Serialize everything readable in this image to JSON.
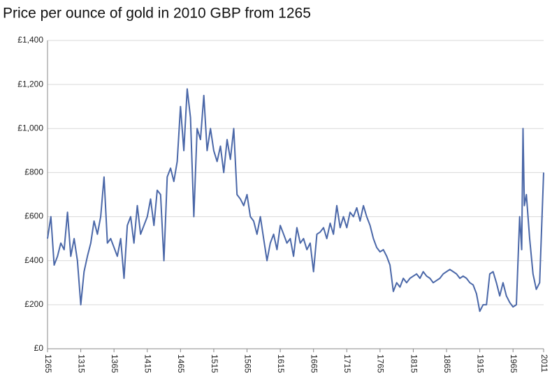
{
  "chart_data": {
    "type": "line",
    "title": "Price per ounce of gold in 2010 GBP from 1265",
    "x": [
      1265,
      1270,
      1275,
      1280,
      1285,
      1290,
      1295,
      1300,
      1305,
      1310,
      1315,
      1320,
      1325,
      1330,
      1335,
      1340,
      1345,
      1350,
      1355,
      1360,
      1365,
      1370,
      1375,
      1380,
      1385,
      1390,
      1395,
      1400,
      1405,
      1410,
      1415,
      1420,
      1425,
      1430,
      1435,
      1440,
      1445,
      1450,
      1455,
      1460,
      1465,
      1470,
      1475,
      1480,
      1485,
      1490,
      1495,
      1500,
      1505,
      1510,
      1515,
      1520,
      1525,
      1530,
      1535,
      1540,
      1545,
      1550,
      1555,
      1560,
      1565,
      1570,
      1575,
      1580,
      1585,
      1590,
      1595,
      1600,
      1605,
      1610,
      1615,
      1620,
      1625,
      1630,
      1635,
      1640,
      1645,
      1650,
      1655,
      1660,
      1665,
      1670,
      1675,
      1680,
      1685,
      1690,
      1695,
      1700,
      1705,
      1710,
      1715,
      1720,
      1725,
      1730,
      1735,
      1740,
      1745,
      1750,
      1755,
      1760,
      1765,
      1770,
      1775,
      1780,
      1785,
      1790,
      1795,
      1800,
      1805,
      1810,
      1815,
      1820,
      1825,
      1830,
      1835,
      1840,
      1845,
      1850,
      1855,
      1860,
      1865,
      1870,
      1875,
      1880,
      1885,
      1890,
      1895,
      1900,
      1905,
      1910,
      1915,
      1920,
      1925,
      1930,
      1935,
      1940,
      1945,
      1950,
      1955,
      1960,
      1965,
      1970,
      1975,
      1978,
      1980,
      1982,
      1985,
      1990,
      1995,
      2000,
      2005,
      2011
    ],
    "series": [
      {
        "name": "Price",
        "color": "#4a67a8",
        "values": [
          500,
          600,
          380,
          420,
          480,
          450,
          620,
          420,
          500,
          400,
          200,
          350,
          420,
          480,
          580,
          520,
          600,
          780,
          480,
          500,
          460,
          420,
          500,
          320,
          560,
          600,
          480,
          650,
          520,
          560,
          600,
          680,
          560,
          720,
          700,
          400,
          780,
          820,
          760,
          850,
          1100,
          900,
          1180,
          1050,
          600,
          1000,
          950,
          1150,
          900,
          1000,
          900,
          850,
          920,
          800,
          950,
          860,
          1000,
          700,
          680,
          650,
          700,
          600,
          580,
          520,
          600,
          500,
          400,
          480,
          520,
          450,
          560,
          520,
          480,
          500,
          420,
          550,
          480,
          500,
          450,
          480,
          350,
          520,
          530,
          550,
          500,
          570,
          520,
          650,
          550,
          600,
          550,
          620,
          600,
          640,
          580,
          650,
          600,
          560,
          500,
          460,
          440,
          450,
          420,
          380,
          260,
          300,
          280,
          320,
          300,
          320,
          330,
          340,
          320,
          350,
          330,
          320,
          300,
          310,
          320,
          340,
          350,
          360,
          350,
          340,
          320,
          330,
          320,
          300,
          290,
          250,
          170,
          200,
          200,
          340,
          350,
          300,
          240,
          300,
          240,
          210,
          190,
          200,
          600,
          450,
          1000,
          650,
          700,
          500,
          340,
          270,
          300,
          800
        ]
      }
    ],
    "xlim": [
      1265,
      2011
    ],
    "xticks": [
      1265,
      1315,
      1365,
      1415,
      1465,
      1515,
      1565,
      1615,
      1665,
      1715,
      1765,
      1815,
      1865,
      1915,
      1965,
      2011
    ],
    "ylim": [
      0,
      1400
    ],
    "yticks": [
      {
        "value": 0,
        "label": "£0"
      },
      {
        "value": 200,
        "label": "£200"
      },
      {
        "value": 400,
        "label": "£400"
      },
      {
        "value": 600,
        "label": "£600"
      },
      {
        "value": 800,
        "label": "£800"
      },
      {
        "value": 1000,
        "label": "£1,000"
      },
      {
        "value": 1200,
        "label": "£1,200"
      },
      {
        "value": 1400,
        "label": "£1,400"
      }
    ],
    "grid": true
  }
}
